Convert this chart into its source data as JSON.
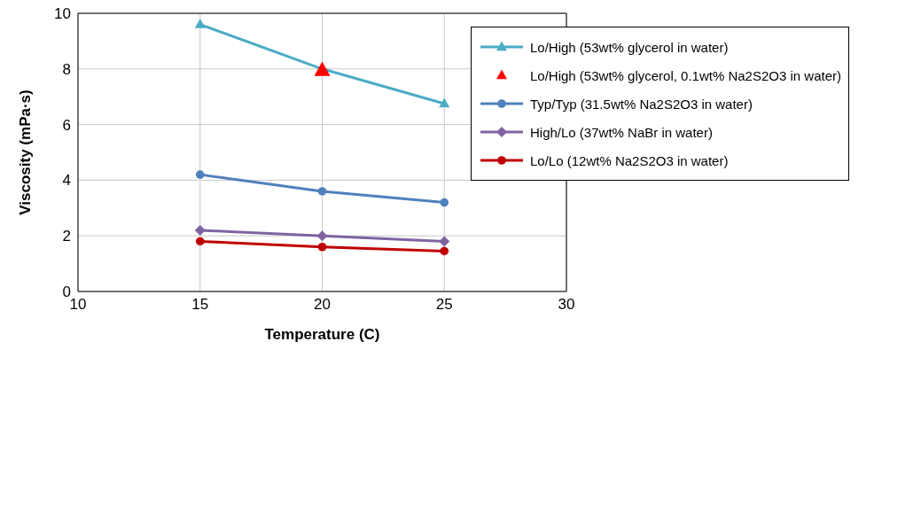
{
  "chart_data": {
    "type": "line",
    "xlabel": "Temperature (C)",
    "ylabel": "Viscosity  (mPa·s)",
    "x": [
      15,
      20,
      25
    ],
    "xlim": [
      10,
      30
    ],
    "xticks": [
      10,
      15,
      20,
      25,
      30
    ],
    "ylim": [
      0,
      10
    ],
    "yticks": [
      0,
      2,
      4,
      6,
      8,
      10
    ],
    "grid": true,
    "legend": "top right",
    "series": [
      {
        "name": "Lo/High (53wt% glycerol in water)",
        "color": "#4bacc6",
        "marker": "triangle",
        "values": [
          9.6,
          8.0,
          6.75
        ]
      },
      {
        "name": "Lo/High (53wt% glycerol, 0.1wt% Na2S2O3 in water)",
        "type": "scatter",
        "color": "#ff0000",
        "marker": "triangle",
        "x": [
          20
        ],
        "values": [
          7.95
        ]
      },
      {
        "name": "Typ/Typ (31.5wt% Na2S2O3 in water)",
        "color": "#4f81bd",
        "marker": "circle",
        "values": [
          4.2,
          3.6,
          3.2
        ]
      },
      {
        "name": "High/Lo (37wt% NaBr in water)",
        "color": "#8064a2",
        "marker": "diamond",
        "values": [
          2.2,
          2.0,
          1.8
        ]
      },
      {
        "name": "Lo/Lo (12wt% Na2S2O3 in water)",
        "color": "#c00000",
        "marker": "circle",
        "values": [
          1.8,
          1.6,
          1.45
        ]
      }
    ]
  }
}
